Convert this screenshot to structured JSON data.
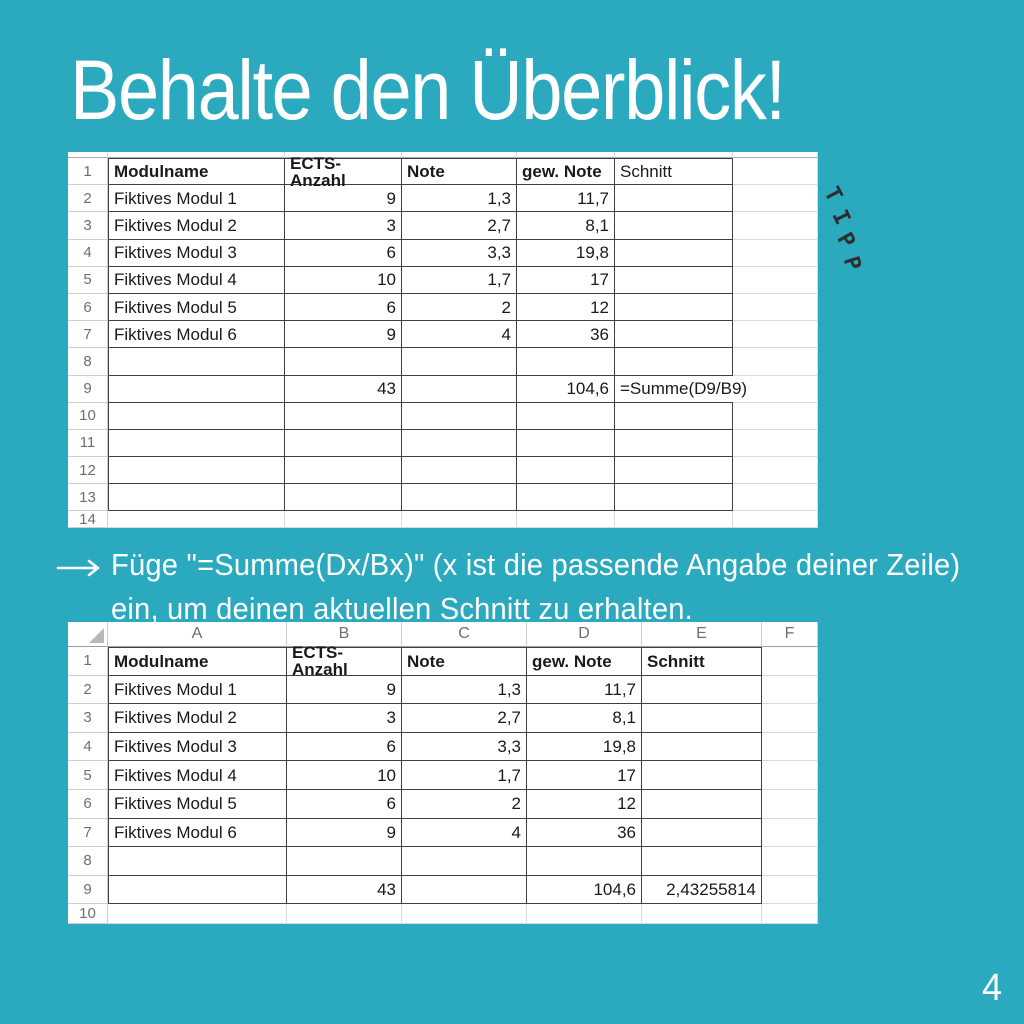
{
  "slide": {
    "title": "Behalte den Überblick!",
    "tip_label": "TIPP",
    "page_number": "4",
    "instruction": {
      "arrow_icon": "long-right-arrow",
      "line1": "Füge \"=Summe(Dx/Bx)\" (x ist die passende Angabe deiner Zeile)",
      "line2": "ein, um deinen aktuellen Schnitt zu erhalten."
    }
  },
  "colors": {
    "background": "#2AA9BF",
    "text_on_background": "#FFFFFF",
    "cell_text": "#1A1A1A",
    "heading_text": "#6E6E6E",
    "border_dark": "#404040",
    "border_light": "#D9D9D9"
  },
  "spreadsheet_top": {
    "description": "excel-screenshot-without-column-letters",
    "row_numbers": [
      "1",
      "2",
      "3",
      "4",
      "5",
      "6",
      "7",
      "8",
      "9",
      "10",
      "11",
      "12",
      "13",
      "14"
    ],
    "bordered_row_count": 13,
    "bold_header": true,
    "regular_header_columns": [
      4
    ],
    "rows": [
      [
        "Modulname",
        "ECTS-Anzahl",
        "Note",
        "gew. Note",
        "Schnitt",
        ""
      ],
      [
        "Fiktives Modul 1",
        "9",
        "1,3",
        "11,7",
        "",
        ""
      ],
      [
        "Fiktives Modul 2",
        "3",
        "2,7",
        "8,1",
        "",
        ""
      ],
      [
        "Fiktives Modul 3",
        "6",
        "3,3",
        "19,8",
        "",
        ""
      ],
      [
        "Fiktives Modul 4",
        "10",
        "1,7",
        "17",
        "",
        ""
      ],
      [
        "Fiktives Modul 5",
        "6",
        "2",
        "12",
        "",
        ""
      ],
      [
        "Fiktives Modul 6",
        "9",
        "4",
        "36",
        "",
        ""
      ],
      [
        "",
        "",
        "",
        "",
        "",
        ""
      ],
      [
        "",
        "43",
        "",
        "104,6",
        "=Summe(D9/B9)",
        ""
      ],
      [
        "",
        "",
        "",
        "",
        "",
        ""
      ],
      [
        "",
        "",
        "",
        "",
        "",
        ""
      ],
      [
        "",
        "",
        "",
        "",
        "",
        ""
      ],
      [
        "",
        "",
        "",
        "",
        "",
        ""
      ],
      [
        "",
        "",
        "",
        "",
        "",
        ""
      ]
    ]
  },
  "spreadsheet_bottom": {
    "description": "excel-screenshot-with-column-letters",
    "column_letters": [
      "A",
      "B",
      "C",
      "D",
      "E",
      "F"
    ],
    "row_numbers": [
      "1",
      "2",
      "3",
      "4",
      "5",
      "6",
      "7",
      "8",
      "9",
      "10"
    ],
    "bordered_row_count": 9,
    "bold_header": true,
    "regular_header_columns": [],
    "rows": [
      [
        "Modulname",
        "ECTS-Anzahl",
        "Note",
        "gew. Note",
        "Schnitt",
        ""
      ],
      [
        "Fiktives Modul 1",
        "9",
        "1,3",
        "11,7",
        "",
        ""
      ],
      [
        "Fiktives Modul 2",
        "3",
        "2,7",
        "8,1",
        "",
        ""
      ],
      [
        "Fiktives Modul 3",
        "6",
        "3,3",
        "19,8",
        "",
        ""
      ],
      [
        "Fiktives Modul 4",
        "10",
        "1,7",
        "17",
        "",
        ""
      ],
      [
        "Fiktives Modul 5",
        "6",
        "2",
        "12",
        "",
        ""
      ],
      [
        "Fiktives Modul 6",
        "9",
        "4",
        "36",
        "",
        ""
      ],
      [
        "",
        "",
        "",
        "",
        "",
        ""
      ],
      [
        "",
        "43",
        "",
        "104,6",
        "2,43255814",
        ""
      ],
      [
        "",
        "",
        "",
        "",
        "",
        ""
      ]
    ]
  }
}
